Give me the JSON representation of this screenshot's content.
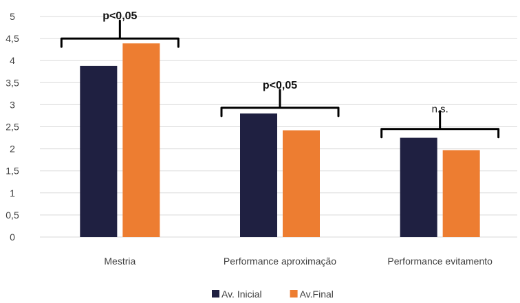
{
  "chart_data": {
    "type": "bar",
    "title": "",
    "xlabel": "",
    "ylabel": "",
    "ylim": [
      0,
      5
    ],
    "y_ticks": [
      "0",
      "0,5",
      "1",
      "1,5",
      "2",
      "2,5",
      "3",
      "3,5",
      "4",
      "4,5",
      "5"
    ],
    "grid": true,
    "legend_position": "bottom",
    "categories": [
      "Mestria",
      "Performance aproximação",
      "Performance evitamento"
    ],
    "series": [
      {
        "name": "Av. Inicial",
        "color": "#1f2041",
        "values": [
          3.88,
          2.8,
          2.25
        ]
      },
      {
        "name": "Av.Final",
        "color": "#ed7d31",
        "values": [
          4.39,
          2.42,
          1.97
        ]
      }
    ],
    "annotations": [
      {
        "category": "Mestria",
        "text": "p<0,05",
        "at_value": 4.5
      },
      {
        "category": "Performance aproximação",
        "text": "p<0,05",
        "at_value": 2.93
      },
      {
        "category": "Performance evitamento",
        "text": "n.s.",
        "at_value": 2.45
      }
    ]
  }
}
